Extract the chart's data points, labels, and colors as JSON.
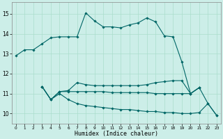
{
  "xlabel": "Humidex (Indice chaleur)",
  "bg_color": "#cceee8",
  "grid_color": "#aaddcc",
  "line_color": "#006666",
  "xlim": [
    -0.5,
    23.5
  ],
  "ylim": [
    9.5,
    15.6
  ],
  "xticks": [
    0,
    1,
    2,
    3,
    4,
    5,
    6,
    7,
    8,
    9,
    10,
    11,
    12,
    13,
    14,
    15,
    16,
    17,
    18,
    19,
    20,
    21,
    22,
    23
  ],
  "yticks": [
    10,
    11,
    12,
    13,
    14,
    15
  ],
  "line1_x": [
    0,
    1,
    2,
    3,
    4,
    5,
    6,
    7,
    8,
    9,
    10,
    11,
    12,
    13,
    14,
    15,
    16,
    17,
    18,
    19,
    20,
    21,
    22,
    23
  ],
  "line1_y": [
    12.9,
    13.2,
    13.2,
    13.5,
    13.8,
    13.85,
    13.85,
    13.85,
    15.05,
    14.65,
    14.35,
    14.35,
    14.3,
    14.45,
    14.55,
    14.8,
    14.6,
    13.9,
    13.85,
    12.6,
    11.0,
    11.3,
    10.5,
    9.9
  ],
  "line2_x": [
    3,
    4,
    5,
    6,
    7,
    8,
    9,
    10,
    11,
    12,
    13,
    14,
    15,
    16,
    17,
    18,
    19,
    20,
    21
  ],
  "line2_y": [
    11.35,
    10.7,
    11.1,
    11.15,
    11.55,
    11.45,
    11.4,
    11.4,
    11.4,
    11.4,
    11.4,
    11.4,
    11.45,
    11.55,
    11.6,
    11.65,
    11.65,
    11.0,
    11.3
  ],
  "line3_x": [
    3,
    4,
    5,
    6,
    7,
    8,
    9,
    10,
    11,
    12,
    13,
    14,
    15,
    16,
    17,
    18,
    19,
    20,
    21
  ],
  "line3_y": [
    11.35,
    10.7,
    11.1,
    11.1,
    11.1,
    11.1,
    11.1,
    11.1,
    11.05,
    11.05,
    11.05,
    11.05,
    11.05,
    11.0,
    11.0,
    11.0,
    11.0,
    11.0,
    11.3
  ],
  "line4_x": [
    3,
    4,
    5,
    6,
    7,
    8,
    9,
    10,
    11,
    12,
    13,
    14,
    15,
    16,
    17,
    18,
    19,
    20,
    21,
    22,
    23
  ],
  "line4_y": [
    11.35,
    10.7,
    11.0,
    10.7,
    10.5,
    10.4,
    10.35,
    10.3,
    10.25,
    10.2,
    10.2,
    10.15,
    10.1,
    10.1,
    10.05,
    10.05,
    10.0,
    10.0,
    10.05,
    10.5,
    9.9
  ]
}
